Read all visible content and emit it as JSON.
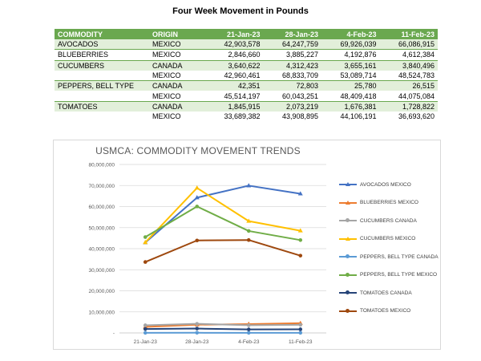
{
  "report_title": "Four Week Movement in Pounds",
  "table": {
    "headers": [
      "COMMODITY",
      "ORIGIN",
      "21-Jan-23",
      "28-Jan-23",
      "4-Feb-23",
      "11-Feb-23"
    ],
    "rows": [
      {
        "commodity": "AVOCADOS",
        "origin": "MEXICO",
        "values": [
          "42,903,578",
          "64,247,759",
          "69,926,039",
          "66,086,915"
        ]
      },
      {
        "commodity": "BLUEBERRIES",
        "origin": "MEXICO",
        "values": [
          "2,846,660",
          "3,885,227",
          "4,192,876",
          "4,612,384"
        ]
      },
      {
        "commodity": "CUCUMBERS",
        "origin": "CANADA",
        "values": [
          "3,640,622",
          "4,312,423",
          "3,655,161",
          "3,840,496"
        ]
      },
      {
        "commodity": "",
        "origin": "MEXICO",
        "values": [
          "42,960,461",
          "68,833,709",
          "53,089,714",
          "48,524,783"
        ]
      },
      {
        "commodity": "PEPPERS, BELL TYPE",
        "origin": "CANADA",
        "values": [
          "42,351",
          "72,803",
          "25,780",
          "26,515"
        ]
      },
      {
        "commodity": "",
        "origin": "MEXICO",
        "values": [
          "45,514,197",
          "60,043,251",
          "48,409,418",
          "44,075,084"
        ]
      },
      {
        "commodity": "TOMATOES",
        "origin": "CANADA",
        "values": [
          "1,845,915",
          "2,073,219",
          "1,676,381",
          "1,728,822"
        ]
      },
      {
        "commodity": "",
        "origin": "MEXICO",
        "values": [
          "33,689,382",
          "43,908,895",
          "44,106,191",
          "36,693,620"
        ]
      }
    ]
  },
  "chart_data": {
    "type": "line",
    "title": "USMCA: COMMODITY MOVEMENT TRENDS",
    "categories": [
      "21-Jan-23",
      "28-Jan-23",
      "4-Feb-23",
      "11-Feb-23"
    ],
    "ylim": [
      0,
      80000000
    ],
    "yticks": [
      0,
      10000000,
      20000000,
      30000000,
      40000000,
      50000000,
      60000000,
      70000000,
      80000000
    ],
    "ytick_labels": [
      "-",
      "10,000,000",
      "20,000,000",
      "30,000,000",
      "40,000,000",
      "50,000,000",
      "60,000,000",
      "70,000,000",
      "80,000,000"
    ],
    "grid": true,
    "legend_position": "right",
    "series": [
      {
        "name": "AVOCADOS MEXICO",
        "color": "#4472c4",
        "marker": "triangle",
        "values": [
          42903578,
          64247759,
          69926039,
          66086915
        ]
      },
      {
        "name": "BLUEBERRIES MEXICO",
        "color": "#ed7d31",
        "marker": "triangle",
        "values": [
          2846660,
          3885227,
          4192876,
          4612384
        ]
      },
      {
        "name": "CUCUMBERS CANADA",
        "color": "#a5a5a5",
        "marker": "circle",
        "values": [
          3640622,
          4312423,
          3655161,
          3840496
        ]
      },
      {
        "name": "CUCUMBERS MEXICO",
        "color": "#ffc000",
        "marker": "triangle",
        "values": [
          42960461,
          68833709,
          53089714,
          48524783
        ]
      },
      {
        "name": "PEPPERS, BELL TYPE CANADA",
        "color": "#5b9bd5",
        "marker": "circle",
        "values": [
          42351,
          72803,
          25780,
          26515
        ]
      },
      {
        "name": "PEPPERS, BELL TYPE MEXICO",
        "color": "#70ad47",
        "marker": "circle",
        "values": [
          45514197,
          60043251,
          48409418,
          44075084
        ]
      },
      {
        "name": "TOMATOES CANADA",
        "color": "#264478",
        "marker": "circle",
        "values": [
          1845915,
          2073219,
          1676381,
          1728822
        ]
      },
      {
        "name": "TOMATOES MEXICO",
        "color": "#9e480e",
        "marker": "circle",
        "values": [
          33689382,
          43908895,
          44106191,
          36693620
        ]
      }
    ]
  }
}
